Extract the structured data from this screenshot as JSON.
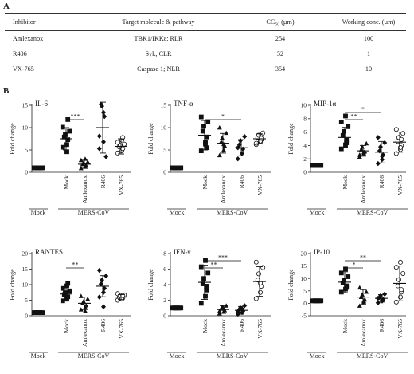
{
  "panel_a": "A",
  "panel_b": "B",
  "table": {
    "headers": [
      "Inhibitor",
      "Target molecule & pathway",
      "CC₅₀ (µm)",
      "Working conc. (µm)"
    ],
    "rows": [
      [
        "Amlexanox",
        "TBK1/IKKε; RLR",
        "254",
        "100"
      ],
      [
        "R406",
        "Syk; CLR",
        "52",
        "1"
      ],
      [
        "VX-765",
        "Caspase 1; NLR",
        "354",
        "10"
      ]
    ]
  },
  "ylabel": "Fold change",
  "group_labels": {
    "mock": "Mock",
    "mers": "MERS-CoV"
  },
  "chart_data": [
    {
      "type": "scatter",
      "title": "IL-6",
      "categories": [
        "Mock",
        "Mock",
        "Amlexanox",
        "R406",
        "VX-765"
      ],
      "ylim": [
        0,
        15
      ],
      "yticks": [
        0,
        5,
        10,
        15
      ],
      "means": [
        1,
        7.5,
        1.8,
        10,
        5.8
      ],
      "sds": [
        0,
        2.5,
        0.9,
        5.7,
        1.7
      ],
      "points": [
        [
          1,
          1,
          1,
          1,
          1,
          1,
          1,
          1,
          1
        ],
        [
          5.6,
          6.2,
          7.3,
          7.9,
          8.4,
          9.2,
          10.1,
          4.6,
          11.8
        ],
        [
          0.9,
          1.2,
          1.5,
          1.8,
          2.1,
          2.3,
          2.7,
          3.0
        ],
        [
          5.3,
          6.8,
          12.5,
          15.2,
          14.8,
          3.5,
          8.1,
          13.4
        ],
        [
          4.3,
          4.8,
          5.3,
          5.7,
          6.0,
          6.3,
          6.7,
          7.2,
          7.8
        ]
      ],
      "markers": [
        "square",
        "square",
        "triangle",
        "diamond",
        "circle"
      ],
      "significance": [
        {
          "from": 1,
          "to": 2,
          "label": "***"
        }
      ]
    },
    {
      "type": "scatter",
      "title": "TNF-α",
      "categories": [
        "Mock",
        "Mock",
        "Amlexanox",
        "R406",
        "VX-765"
      ],
      "ylim": [
        0,
        15
      ],
      "yticks": [
        0,
        5,
        10,
        15
      ],
      "means": [
        1,
        8.3,
        6.5,
        5.5,
        7.5
      ],
      "sds": [
        0,
        3.3,
        2.2,
        1.8,
        1.1
      ],
      "points": [
        [
          1,
          1,
          1,
          1,
          1,
          1,
          1,
          1,
          1
        ],
        [
          4.8,
          6.3,
          7.9,
          9.2,
          10.3,
          11.3,
          12.4,
          6.8,
          5.5
        ],
        [
          3.8,
          5.0,
          5.9,
          6.8,
          7.7,
          8.8,
          10.0,
          6.3
        ],
        [
          3.0,
          4.2,
          5.2,
          6.2,
          7.1,
          8.0,
          5.5
        ],
        [
          6.2,
          6.8,
          7.3,
          7.8,
          8.3,
          8.8,
          6.5,
          7.0,
          7.6
        ]
      ],
      "markers": [
        "square",
        "square",
        "triangle",
        "diamond",
        "circle"
      ],
      "significance": [
        {
          "from": 1,
          "to": 3,
          "label": "*"
        }
      ]
    },
    {
      "type": "scatter",
      "title": "MIP-1α",
      "categories": [
        "Mock",
        "Mock",
        "Amlexanox",
        "R406",
        "VX-765"
      ],
      "ylim": [
        0,
        10
      ],
      "yticks": [
        0,
        2,
        4,
        6,
        8,
        10
      ],
      "means": [
        1,
        5.2,
        3.2,
        3.0,
        4.5
      ],
      "sds": [
        0,
        1.5,
        0.8,
        1.6,
        1.5
      ],
      "points": [
        [
          1,
          1,
          1,
          1,
          1,
          1,
          1,
          1,
          1
        ],
        [
          3.5,
          4.1,
          4.8,
          5.5,
          6.1,
          6.8,
          7.5,
          8.4,
          4.4
        ],
        [
          2.3,
          2.8,
          3.1,
          3.4,
          3.8,
          4.3,
          2.6,
          3.0
        ],
        [
          1.3,
          1.9,
          2.6,
          3.2,
          3.8,
          4.4,
          5.2,
          2.4
        ],
        [
          2.8,
          3.4,
          4.0,
          4.6,
          5.2,
          5.8,
          6.4,
          3.7,
          4.9
        ]
      ],
      "markers": [
        "square",
        "square",
        "triangle",
        "diamond",
        "circle"
      ],
      "significance": [
        {
          "from": 1,
          "to": 2,
          "label": "**"
        },
        {
          "from": 1,
          "to": 3,
          "label": "*"
        }
      ]
    },
    {
      "type": "scatter",
      "title": "RANTES",
      "categories": [
        "Mock",
        "Mock",
        "Amlexanox",
        "R406",
        "VX-765"
      ],
      "ylim": [
        0,
        20
      ],
      "yticks": [
        0,
        5,
        10,
        15,
        20
      ],
      "means": [
        1,
        7,
        4,
        9.5,
        6
      ],
      "sds": [
        0,
        2.3,
        2.0,
        3.4,
        0.8
      ],
      "points": [
        [
          1,
          1,
          1,
          1,
          1,
          1,
          1,
          1,
          1
        ],
        [
          4.8,
          5.5,
          6.1,
          6.8,
          7.4,
          8.0,
          8.8,
          9.6,
          10.4
        ],
        [
          2.0,
          2.7,
          3.3,
          4.0,
          4.6,
          5.4,
          6.3,
          1.5
        ],
        [
          6.0,
          7.5,
          8.8,
          10.2,
          11.5,
          12.8,
          14.6,
          2.9
        ],
        [
          5.0,
          5.4,
          5.7,
          6.0,
          6.3,
          6.7,
          7.1,
          5.5,
          6.5
        ]
      ],
      "markers": [
        "square",
        "square",
        "triangle",
        "diamond",
        "circle"
      ],
      "significance": [
        {
          "from": 1,
          "to": 2,
          "label": "**"
        }
      ]
    },
    {
      "type": "scatter",
      "title": "IFN-γ",
      "categories": [
        "Mock",
        "Mock",
        "Amlexanox",
        "R406",
        "VX-765"
      ],
      "ylim": [
        0,
        8
      ],
      "yticks": [
        0,
        2,
        4,
        6,
        8
      ],
      "means": [
        1,
        4.3,
        0.8,
        0.7,
        4.4
      ],
      "sds": [
        0,
        2.2,
        0.5,
        0.5,
        1.9
      ],
      "points": [
        [
          1,
          1,
          1,
          1,
          1,
          1,
          1,
          1,
          1
        ],
        [
          1.6,
          2.5,
          3.3,
          4.1,
          4.8,
          5.5,
          6.3,
          7.1,
          3.8
        ],
        [
          0.3,
          0.5,
          0.7,
          0.9,
          1.1,
          1.3,
          0.6,
          1.0
        ],
        [
          0.2,
          0.4,
          0.6,
          0.8,
          1.0,
          1.3,
          0.5,
          0.9
        ],
        [
          2.2,
          3.0,
          3.8,
          4.6,
          5.4,
          6.2,
          6.9,
          4.2
        ]
      ],
      "markers": [
        "square",
        "square",
        "triangle",
        "diamond",
        "circle"
      ],
      "significance": [
        {
          "from": 1,
          "to": 2,
          "label": "**"
        },
        {
          "from": 1,
          "to": 3,
          "label": "***"
        }
      ]
    },
    {
      "type": "scatter",
      "title": "IP-10",
      "categories": [
        "Mock",
        "Mock",
        "Amlexanox",
        "R406",
        "VX-765"
      ],
      "ylim": [
        -5,
        20
      ],
      "yticks": [
        -5,
        0,
        5,
        10,
        15,
        20
      ],
      "means": [
        1,
        8.5,
        2.5,
        2.0,
        8.0
      ],
      "sds": [
        0,
        4.2,
        3.0,
        1.5,
        7.0
      ],
      "points": [
        [
          1,
          1,
          1,
          1,
          1,
          1,
          1,
          1,
          1
        ],
        [
          4.5,
          5.7,
          7.0,
          8.2,
          9.4,
          10.7,
          12.2,
          13.8,
          6.4
        ],
        [
          -1.0,
          0.5,
          1.5,
          2.5,
          3.5,
          4.6,
          6.3,
          1.0
        ],
        [
          0.2,
          0.9,
          1.6,
          2.3,
          3.0,
          3.7,
          2.0,
          1.2
        ],
        [
          0.5,
          2.5,
          4.5,
          7.0,
          9.5,
          12.0,
          14.5,
          16.5,
          5.5
        ]
      ],
      "markers": [
        "square",
        "square",
        "triangle",
        "diamond",
        "circle"
      ],
      "significance": [
        {
          "from": 1,
          "to": 2,
          "label": "*"
        },
        {
          "from": 1,
          "to": 3,
          "label": "**"
        }
      ]
    }
  ]
}
